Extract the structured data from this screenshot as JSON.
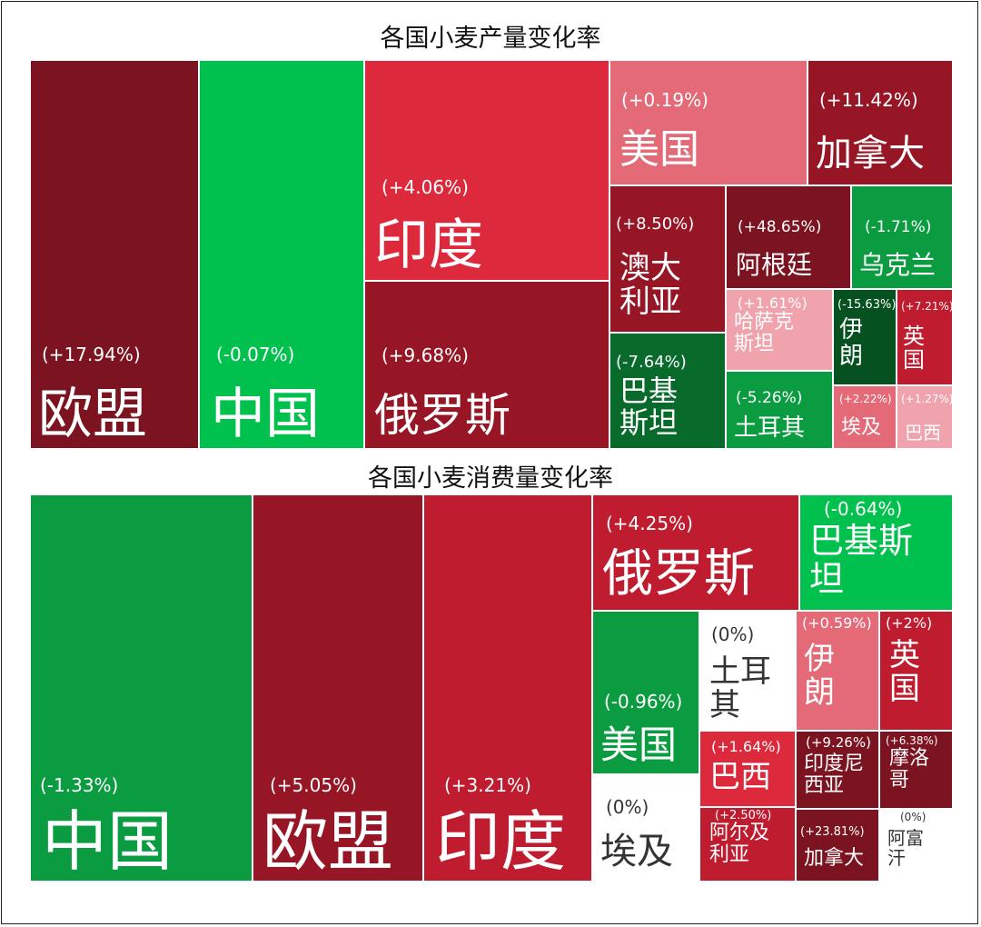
{
  "colors": {
    "dark_red": "#7b1420",
    "deep_red": "#961626",
    "red": "#c01c2f",
    "bright_red": "#dc2a3c",
    "pink": "#e46a78",
    "light_pink": "#f0a3ad",
    "bright_green": "#00c14d",
    "green": "#0b9c41",
    "dark_green": "#086b2c",
    "darker_green": "#05511f",
    "white": "#ffffff"
  },
  "chart_data": [
    {
      "type": "treemap",
      "title": "各国小麦产量变化率",
      "items": [
        {
          "name": "欧盟",
          "value": 17.94,
          "label": "(+17.94%)"
        },
        {
          "name": "中国",
          "value": -0.07,
          "label": "(-0.07%)"
        },
        {
          "name": "印度",
          "value": 4.06,
          "label": "(+4.06%)"
        },
        {
          "name": "俄罗斯",
          "value": 9.68,
          "label": "(+9.68%)"
        },
        {
          "name": "美国",
          "value": 0.19,
          "label": "(+0.19%)"
        },
        {
          "name": "加拿大",
          "value": 11.42,
          "label": "(+11.42%)"
        },
        {
          "name": "澳大\n利亚",
          "value": 8.5,
          "label": "(+8.50%)"
        },
        {
          "name": "阿根廷",
          "value": 48.65,
          "label": "(+48.65%)"
        },
        {
          "name": "乌克兰",
          "value": -1.71,
          "label": "(-1.71%)"
        },
        {
          "name": "哈萨克\n斯坦",
          "value": 1.61,
          "label": "(+1.61%)"
        },
        {
          "name": "伊\n朗",
          "value": -15.63,
          "label": "(-15.63%)"
        },
        {
          "name": "英\n国",
          "value": 7.21,
          "label": "(+7.21%)"
        },
        {
          "name": "巴基\n斯坦",
          "value": -7.64,
          "label": "(-7.64%)"
        },
        {
          "name": "土耳其",
          "value": -5.26,
          "label": "(-5.26%)"
        },
        {
          "name": "埃及",
          "value": 2.22,
          "label": "(+2.22%)"
        },
        {
          "name": "巴西",
          "value": 1.27,
          "label": "(+1.27%)"
        }
      ]
    },
    {
      "type": "treemap",
      "title": "各国小麦消费量变化率",
      "items": [
        {
          "name": "中国",
          "value": -1.33,
          "label": "(-1.33%)"
        },
        {
          "name": "欧盟",
          "value": 5.05,
          "label": "(+5.05%)"
        },
        {
          "name": "印度",
          "value": 3.21,
          "label": "(+3.21%)"
        },
        {
          "name": "俄罗斯",
          "value": 4.25,
          "label": "(+4.25%)"
        },
        {
          "name": "巴基斯\n坦",
          "value": -0.64,
          "label": "(-0.64%)"
        },
        {
          "name": "美国",
          "value": -0.96,
          "label": "(-0.96%)"
        },
        {
          "name": "土耳\n其",
          "value": 0,
          "label": "(0%)"
        },
        {
          "name": "伊\n朗",
          "value": 0.59,
          "label": "(+0.59%)"
        },
        {
          "name": "英\n国",
          "value": 2,
          "label": "(+2%)"
        },
        {
          "name": "巴西",
          "value": 1.64,
          "label": "(+1.64%)"
        },
        {
          "name": "印度尼\n西亚",
          "value": 9.26,
          "label": "(+9.26%)"
        },
        {
          "name": "摩洛\n哥",
          "value": 6.38,
          "label": "(+6.38%)"
        },
        {
          "name": "埃及",
          "value": 0,
          "label": "(0%)"
        },
        {
          "name": "阿尔及\n利亚",
          "value": 2.5,
          "label": "(+2.50%)"
        },
        {
          "name": "加拿大",
          "value": 23.81,
          "label": "(+23.81%)"
        },
        {
          "name": "阿富\n汗",
          "value": 0,
          "label": "(0%)"
        }
      ]
    }
  ]
}
